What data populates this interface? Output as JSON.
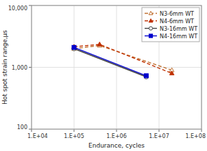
{
  "chart_data": {
    "type": "line",
    "xlabel": "Endurance, cycles",
    "ylabel": "Hot spot strain range,μs",
    "log": true,
    "grid": true,
    "legend": "upper right",
    "xlim": [
      10000,
      100000000
    ],
    "xticks": [
      {
        "value": 10000,
        "label": "1.E+04"
      },
      {
        "value": 100000,
        "label": "1.E+05"
      },
      {
        "value": 1000000,
        "label": "1.E+06"
      },
      {
        "value": 10000000,
        "label": "1.E+07"
      },
      {
        "value": 100000000,
        "label": "1.E+08"
      }
    ],
    "ylim": [
      100,
      10000
    ],
    "yticks": [
      100,
      {
        "value": 1000,
        "label": "1,000"
      },
      {
        "value": 10000,
        "label": "10,000"
      }
    ],
    "series": [
      {
        "name": "N3-6mm WT",
        "color": "#c07030",
        "line_style": "dashed",
        "marker": "triangle-open",
        "x": [
          100000,
          400000,
          20000000
        ],
        "values": [
          2000,
          2250,
          900
        ]
      },
      {
        "name": "N4-6mm WT",
        "color": "#c03000",
        "line_style": "dashed",
        "marker": "triangle",
        "x": [
          100000,
          400000,
          20000000
        ],
        "values": [
          2150,
          2350,
          800
        ]
      },
      {
        "name": "N3-16mm WT",
        "color": "#404040",
        "line_style": "solid",
        "marker": "circle-open",
        "x": [
          100000,
          5000000
        ],
        "values": [
          2000,
          700
        ]
      },
      {
        "name": "N4-16mm WT",
        "color": "#0000cc",
        "line_style": "solid",
        "marker": "square",
        "x": [
          100000,
          5000000
        ],
        "values": [
          2100,
          730
        ]
      }
    ]
  }
}
